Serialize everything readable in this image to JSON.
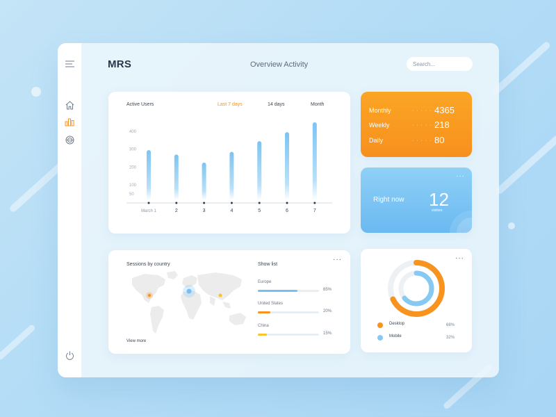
{
  "app": {
    "title": "MRS",
    "page_heading": "Overview Activity"
  },
  "search": {
    "placeholder": "Search..."
  },
  "sidebar": {
    "items": [
      {
        "name": "menu",
        "icon": "hamburger-icon"
      },
      {
        "name": "home",
        "icon": "home-icon"
      },
      {
        "name": "analytics",
        "icon": "bar-chart-icon",
        "active": true
      },
      {
        "name": "globe",
        "icon": "globe-icon"
      },
      {
        "name": "power",
        "icon": "power-icon"
      }
    ]
  },
  "active_users": {
    "title": "Active Users",
    "tabs": [
      {
        "label": "Last 7 days",
        "active": true
      },
      {
        "label": "14 days",
        "active": false
      },
      {
        "label": "Month",
        "active": false
      }
    ],
    "chart_data": {
      "type": "bar",
      "title": "Active Users",
      "categories": [
        "March 1",
        "2",
        "3",
        "4",
        "5",
        "6",
        "7"
      ],
      "values": [
        295,
        270,
        225,
        285,
        345,
        395,
        450
      ],
      "yticks": [
        50,
        100,
        200,
        300,
        400
      ],
      "ylim": [
        0,
        450
      ],
      "grid": false,
      "bar_color": "#8fcdf4"
    }
  },
  "stats": {
    "rows": [
      {
        "label": "Monthly",
        "dots": "· · · · · ·",
        "value": "4365"
      },
      {
        "label": "Weekly",
        "dots": "· · · · · ·",
        "value": "218"
      },
      {
        "label": "Daily",
        "dots": "· · · · · ·",
        "value": "80"
      }
    ],
    "color": "#f7931e"
  },
  "right_now": {
    "label": "Right now",
    "value": "12",
    "unit": "visitors",
    "color": "#74c0f3"
  },
  "sessions": {
    "title": "Sessions by country",
    "view_more": "View more",
    "show_list": "Show list",
    "countries": [
      {
        "name": "Europe",
        "percent_label": "65%",
        "fraction": 0.65,
        "color": "#74c0f3"
      },
      {
        "name": "United States",
        "percent_label": "20%",
        "fraction": 0.2,
        "color": "#f7931e"
      },
      {
        "name": "China",
        "percent_label": "15%",
        "fraction": 0.15,
        "color": "#f8c32c"
      }
    ]
  },
  "devices": {
    "chart_data": {
      "type": "pie",
      "series": [
        {
          "name": "Desktop",
          "value": 68,
          "label": "68%",
          "color": "#f7931e"
        },
        {
          "name": "Mobile",
          "value": 32,
          "label": "32%",
          "color": "#86c9f3"
        }
      ]
    }
  }
}
